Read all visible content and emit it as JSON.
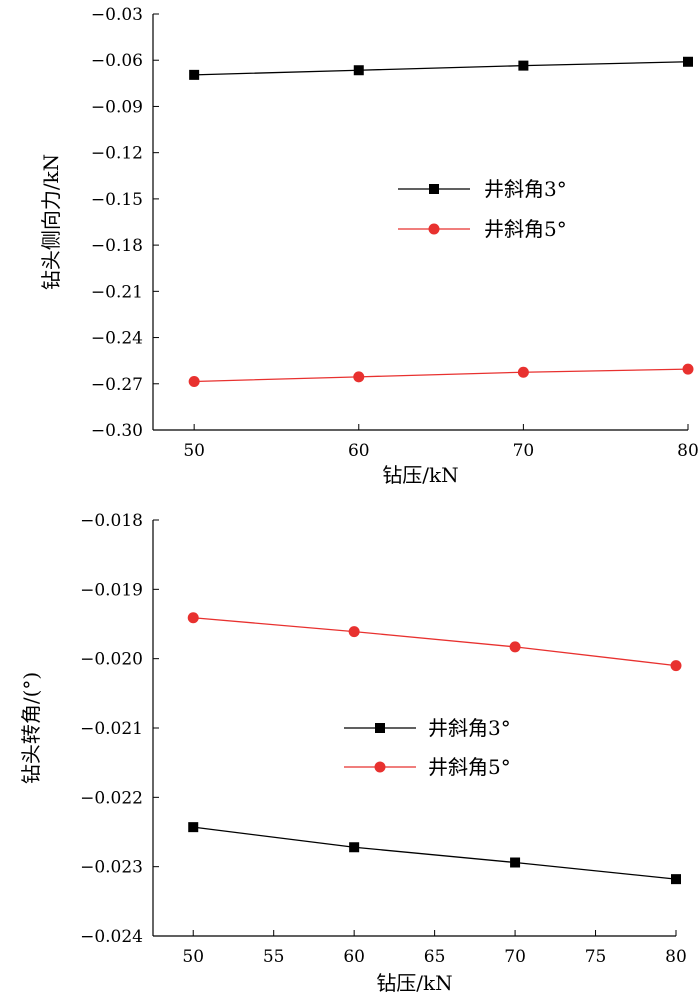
{
  "chart_data": [
    {
      "type": "line",
      "title": "",
      "xlabel": "钻压/kN",
      "ylabel": "钻头侧向力/kN",
      "xlim": [
        47.5,
        80
      ],
      "ylim": [
        -0.3,
        -0.03
      ],
      "xticks": [
        50,
        60,
        70,
        80
      ],
      "xtick_labels": [
        "50",
        "60",
        "70",
        "80"
      ],
      "yticks": [
        -0.03,
        -0.06,
        -0.09,
        -0.12,
        -0.15,
        -0.18,
        -0.21,
        -0.24,
        -0.27,
        -0.3
      ],
      "ytick_labels": [
        "−0.03",
        "−0.06",
        "−0.09",
        "−0.12",
        "−0.15",
        "−0.18",
        "−0.21",
        "−0.24",
        "−0.27",
        "−0.30"
      ],
      "grid": false,
      "legend_position": "center-right",
      "x": [
        50,
        60,
        70,
        80
      ],
      "series": [
        {
          "name": "井斜角3°",
          "values": [
            -0.0695,
            -0.0665,
            -0.0635,
            -0.061
          ],
          "color": "#000000",
          "marker": "square"
        },
        {
          "name": "井斜角5°",
          "values": [
            -0.2685,
            -0.2655,
            -0.2625,
            -0.2605
          ],
          "color": "#e8312f",
          "marker": "circle"
        }
      ]
    },
    {
      "type": "line",
      "title": "",
      "xlabel": "钻压/kN",
      "ylabel": "钻头转角/(°)",
      "xlim": [
        47.5,
        80
      ],
      "ylim": [
        -0.024,
        -0.018
      ],
      "xticks": [
        50,
        55,
        60,
        65,
        70,
        75,
        80
      ],
      "xtick_labels": [
        "50",
        "55",
        "60",
        "65",
        "70",
        "75",
        "80"
      ],
      "yticks": [
        -0.018,
        -0.019,
        -0.02,
        -0.021,
        -0.022,
        -0.023,
        -0.024
      ],
      "ytick_labels": [
        "−0.018",
        "−0.019",
        "−0.020",
        "−0.021",
        "−0.022",
        "−0.023",
        "−0.024"
      ],
      "grid": false,
      "legend_position": "center",
      "x": [
        50,
        60,
        70,
        80
      ],
      "series": [
        {
          "name": "井斜角3°",
          "values": [
            -0.02243,
            -0.02272,
            -0.02294,
            -0.02318
          ],
          "color": "#000000",
          "marker": "square"
        },
        {
          "name": "井斜角5°",
          "values": [
            -0.01941,
            -0.01961,
            -0.01983,
            -0.0201
          ],
          "color": "#e8312f",
          "marker": "circle"
        }
      ]
    }
  ]
}
